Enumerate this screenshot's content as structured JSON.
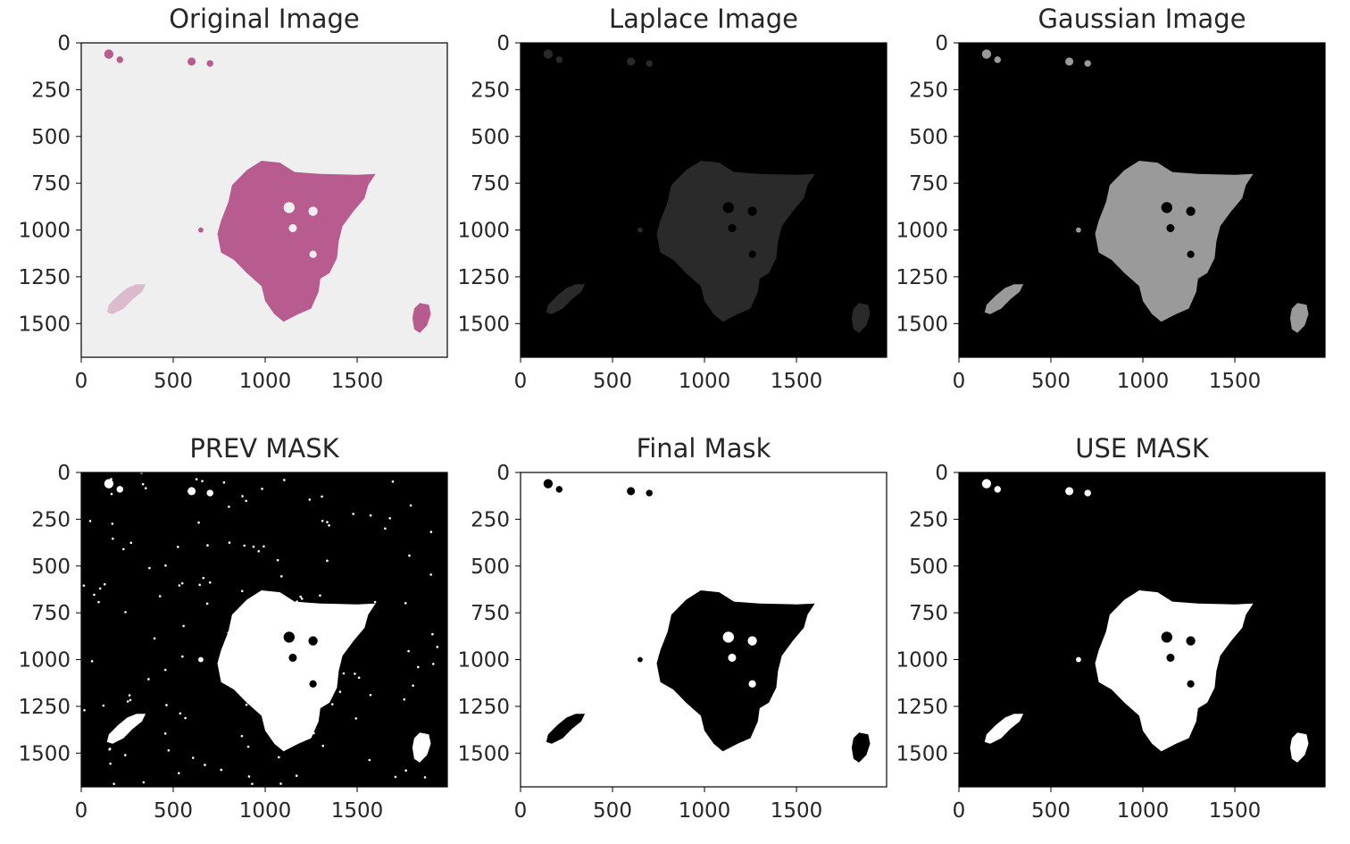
{
  "figure": {
    "panels": [
      {
        "key": "original",
        "title": "Original Image",
        "xticks": [
          "0",
          "500",
          "1000",
          "1500"
        ],
        "yticks": [
          "0",
          "250",
          "500",
          "750",
          "1000",
          "1250",
          "1500"
        ],
        "background": "#efefef",
        "tissue_color": "#b85b8e"
      },
      {
        "key": "laplace",
        "title": "Laplace Image",
        "xticks": [
          "0",
          "500",
          "1000",
          "1500"
        ],
        "yticks": [
          "0",
          "250",
          "500",
          "750",
          "1000",
          "1250",
          "1500"
        ],
        "background": "#000000",
        "tissue_color": "#2a2a2a"
      },
      {
        "key": "gaussian",
        "title": "Gaussian Image",
        "xticks": [
          "0",
          "500",
          "1000",
          "1500"
        ],
        "yticks": [
          "0",
          "250",
          "500",
          "750",
          "1000",
          "1250",
          "1500"
        ],
        "background": "#000000",
        "tissue_color": "#9a9a9a"
      },
      {
        "key": "prev_mask",
        "title": "PREV MASK",
        "xticks": [
          "0",
          "500",
          "1000",
          "1500"
        ],
        "yticks": [
          "0",
          "250",
          "500",
          "750",
          "1000",
          "1250",
          "1500"
        ],
        "background": "#000000",
        "tissue_color": "#ffffff"
      },
      {
        "key": "final_mask",
        "title": "Final Mask",
        "xticks": [
          "0",
          "500",
          "1000",
          "1500"
        ],
        "yticks": [
          "0",
          "250",
          "500",
          "750",
          "1000",
          "1250",
          "1500"
        ],
        "background": "#ffffff",
        "tissue_color": "#000000"
      },
      {
        "key": "use_mask",
        "title": "USE MASK",
        "xticks": [
          "0",
          "500",
          "1000",
          "1500"
        ],
        "yticks": [
          "0",
          "250",
          "500",
          "750",
          "1000",
          "1250",
          "1500"
        ],
        "background": "#000000",
        "tissue_color": "#ffffff"
      }
    ]
  }
}
